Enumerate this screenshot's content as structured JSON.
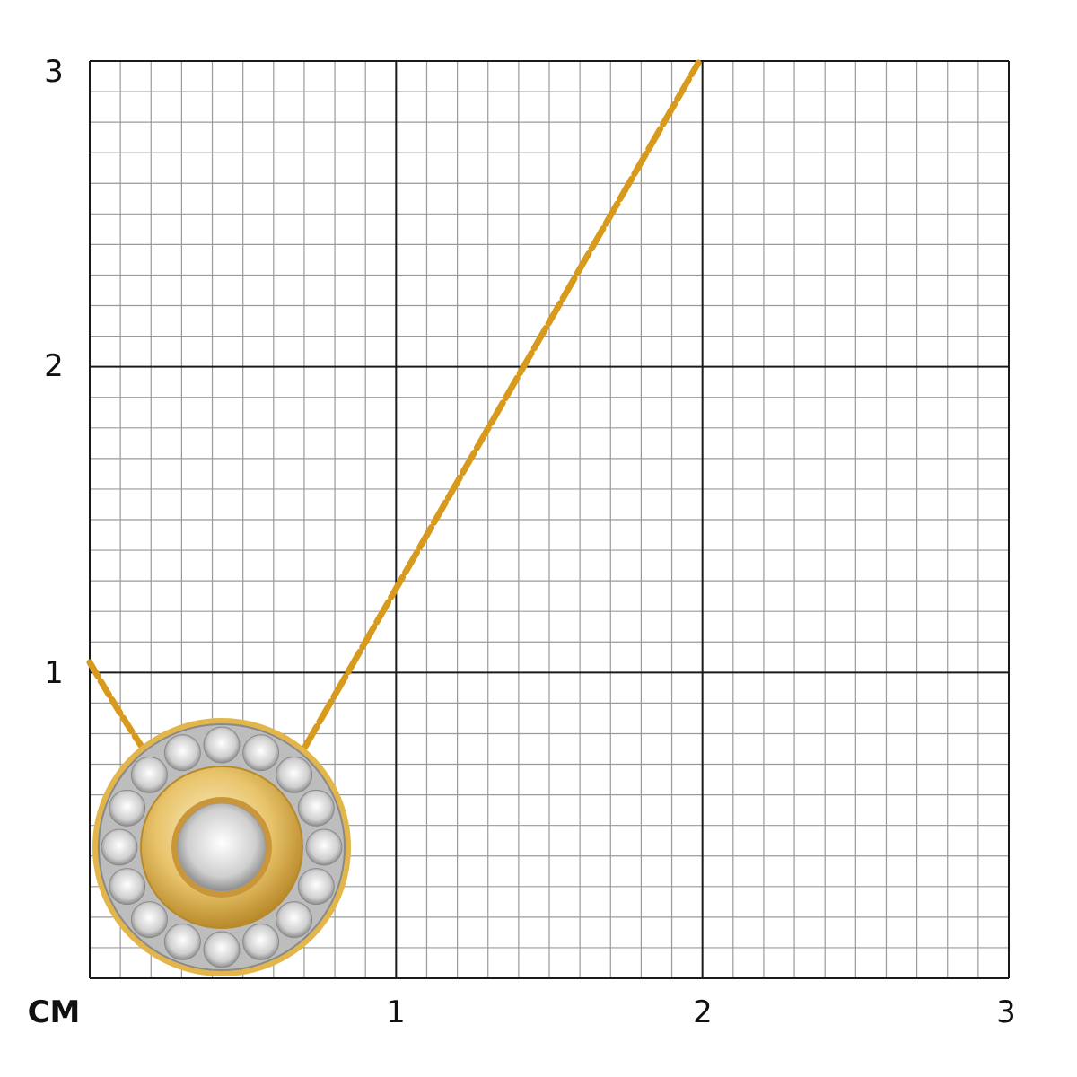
{
  "grid": {
    "unit_label": "СМ",
    "x_ticks": [
      "1",
      "2",
      "3"
    ],
    "y_ticks": [
      "1",
      "2",
      "3"
    ],
    "range_cm": 3,
    "minor_divisions_per_cm": 10
  },
  "colors": {
    "major_line": "#1a1a1a",
    "minor_line": "#9a9a9a",
    "gold": "#e0a72a",
    "gold_light": "#f3d98a",
    "silver": "#c9c9c9"
  }
}
